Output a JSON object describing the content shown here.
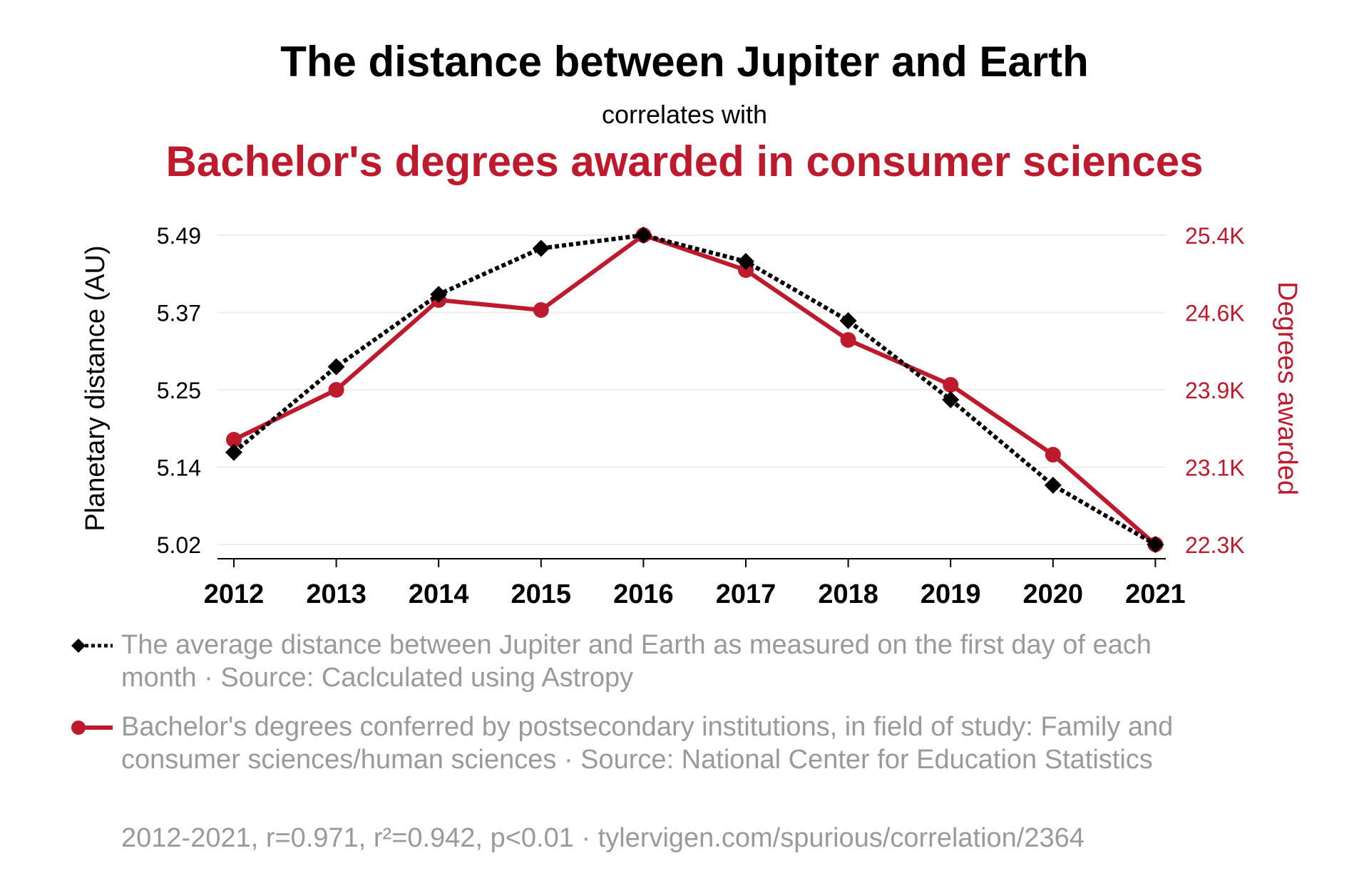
{
  "header": {
    "title": "The distance between Jupiter and Earth",
    "subtitle": "correlates with",
    "title2": "Bachelor's degrees awarded in consumer sciences"
  },
  "colors": {
    "series1": "#000000",
    "series2": "#be1a2d",
    "grid": "#eeeeee",
    "legend_text": "#9a9a9a"
  },
  "chart_data": {
    "type": "line",
    "title": "The distance between Jupiter and Earth",
    "subtitle": "correlates with",
    "title2": "Bachelor's degrees awarded in consumer sciences",
    "x": [
      "2012",
      "2013",
      "2014",
      "2015",
      "2016",
      "2017",
      "2018",
      "2019",
      "2020",
      "2021"
    ],
    "xlabel": "",
    "y_left": {
      "label": "Planetary distance (AU)",
      "ticks": [
        "5.49",
        "5.37",
        "5.25",
        "5.14",
        "5.02"
      ],
      "range": [
        5.02,
        5.49
      ]
    },
    "y_right": {
      "label": "Degrees awarded",
      "ticks": [
        "25.4K",
        "24.6K",
        "23.9K",
        "23.1K",
        "22.3K"
      ],
      "range": [
        22.3,
        25.4
      ]
    },
    "series": [
      {
        "name": "The average distance between Jupiter and Earth as measured on the first day of each month · Source: Caclculated using Astropy",
        "axis": "left",
        "style": "dotted",
        "marker": "diamond",
        "values": [
          5.16,
          5.29,
          5.4,
          5.47,
          5.49,
          5.45,
          5.36,
          5.24,
          5.11,
          5.02
        ]
      },
      {
        "name": "Bachelor's degrees conferred by postsecondary institutions, in field of study: Family and consumer sciences/human sciences · Source: National Center for Education Statistics",
        "axis": "right",
        "style": "solid",
        "marker": "circle",
        "values": [
          23.35,
          23.85,
          24.75,
          24.65,
          25.4,
          25.05,
          24.35,
          23.9,
          23.2,
          22.3
        ]
      }
    ]
  },
  "legend": {
    "series1_text": "The average distance between Jupiter and Earth as measured on the first day of each month · Source: Caclculated using Astropy",
    "series2_text": "Bachelor's degrees conferred by postsecondary institutions, in field of study: Family and consumer sciences/human sciences · Source: National Center for Education Statistics"
  },
  "footer": {
    "stats": "2012-2021, r=0.971, r²=0.942, p<0.01 · tylervigen.com/spurious/correlation/2364"
  }
}
